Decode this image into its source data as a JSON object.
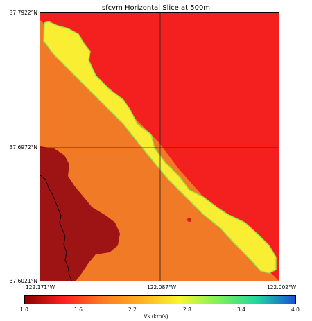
{
  "title": "sfcvm Horizontal Slice at 500m",
  "lat_labels": [
    "37.7922°N",
    "37.6972°N",
    "37.6021°N"
  ],
  "lon_labels": [
    "122.171°W",
    "122.087°W",
    "122.002°W"
  ],
  "colorbar": {
    "label": "Vs (km/s)",
    "ticks": [
      "1.0",
      "1.6",
      "2.2",
      "2.8",
      "3.4",
      "4.0"
    ],
    "colors": [
      "#8b0000",
      "#ff2020",
      "#ff7a20",
      "#ffb020",
      "#f7f730",
      "#7df25a",
      "#1fd8a0",
      "#1a4fd8"
    ]
  },
  "map_colors": {
    "high_block": "#f42020",
    "basin_fill": "#f07a25",
    "low_block": "#9e1414",
    "fault_strip": "#f9ee31",
    "strip_edge": "#9ee04a",
    "coastline": "#000000",
    "gridline": "#222222"
  }
}
